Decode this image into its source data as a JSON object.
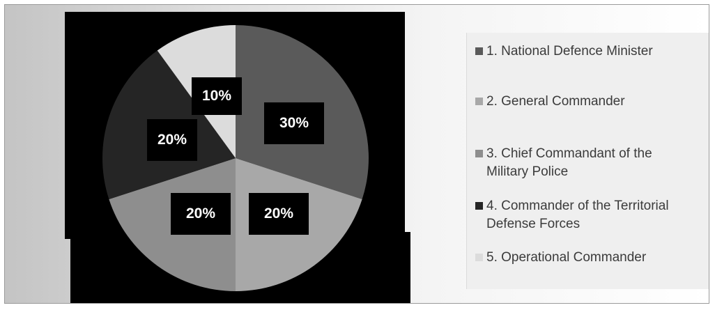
{
  "chart_data": {
    "type": "pie",
    "title": "",
    "legend_position": "right",
    "slices": [
      {
        "label": "1. National Defence Minister",
        "value": 30,
        "display": "30%",
        "color": "#5a5a5a"
      },
      {
        "label": "2. General Commander",
        "value": 20,
        "display": "20%",
        "color": "#a8a8a8"
      },
      {
        "label": "3. Chief Commandant of the Military Police",
        "value": 20,
        "display": "20%",
        "color": "#8e8e8e"
      },
      {
        "label": "4. Commander of the Territorial Defense Forces",
        "value": 20,
        "display": "20%",
        "color": "#252525"
      },
      {
        "label": "5. Operational Commander",
        "value": 10,
        "display": "10%",
        "color": "#dcdcdc"
      }
    ]
  },
  "legend": {
    "items": [
      {
        "lines": [
          "1. National Defence Minister"
        ],
        "color": "#5a5a5a"
      },
      {
        "lines": [
          "2. General Commander"
        ],
        "color": "#a8a8a8"
      },
      {
        "lines": [
          "3. Chief Commandant of the",
          "Military Police"
        ],
        "color": "#8e8e8e"
      },
      {
        "lines": [
          "4. Commander of the Territorial",
          "Defense Forces"
        ],
        "color": "#252525"
      },
      {
        "lines": [
          "5. Operational Commander"
        ],
        "color": "#dcdcdc"
      }
    ]
  }
}
